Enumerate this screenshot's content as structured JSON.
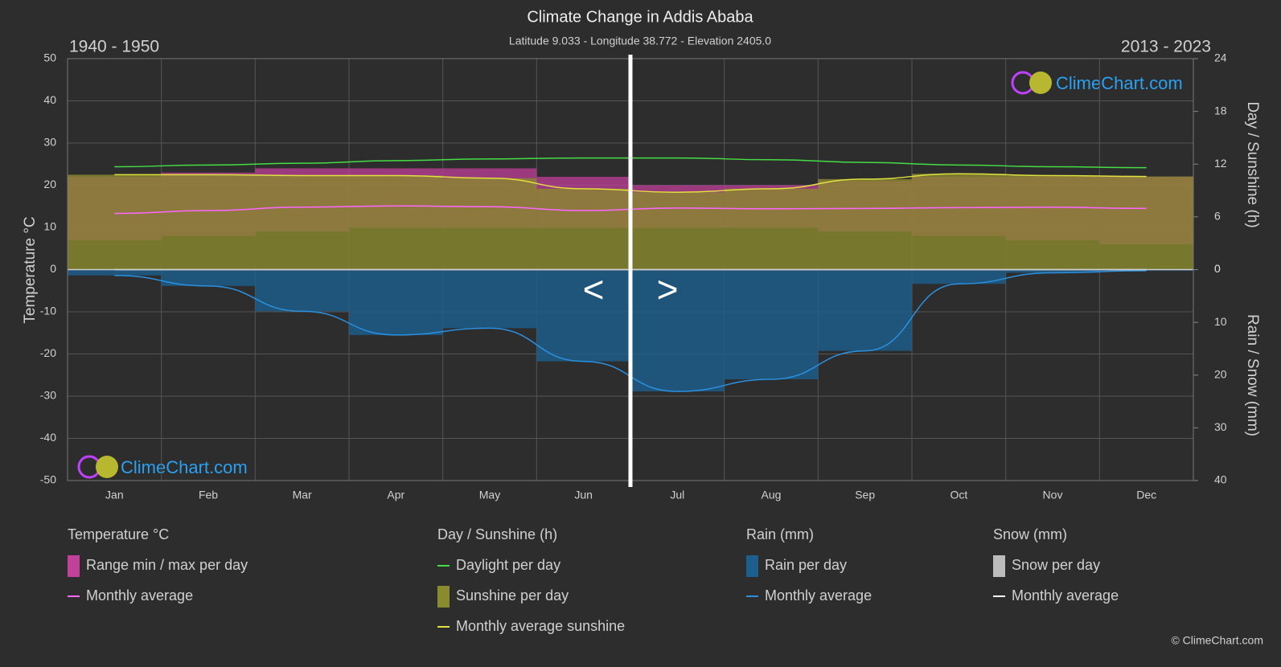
{
  "chart_data": {
    "type": "climate",
    "title": "Climate Change in Addis Ababa",
    "subtitle": "Latitude 9.033 - Longitude 38.772 - Elevation 2405.0",
    "period_left": "1940 - 1950",
    "period_right": "2013 - 2023",
    "nav": [
      "<",
      ">"
    ],
    "watermark": "ClimeChart.com",
    "copyright": "© ClimeChart.com",
    "y_label": "Temperature °C",
    "y2_label": "Day / Sunshine (h)",
    "y3_label": "Rain / Snow (mm)",
    "categories": [
      "Jan",
      "Feb",
      "Mar",
      "Apr",
      "May",
      "Jun",
      "Jul",
      "Aug",
      "Sep",
      "Oct",
      "Nov",
      "Dec"
    ],
    "ylim": [
      -50,
      50
    ],
    "yticks": [
      -50,
      -40,
      -30,
      -20,
      -10,
      0,
      10,
      20,
      30,
      40,
      50
    ],
    "y2lim": [
      0,
      24
    ],
    "y2ticks": [
      0,
      6,
      12,
      18,
      24
    ],
    "y3lim": [
      0,
      40
    ],
    "y3ticks": [
      0,
      10,
      20,
      30,
      40
    ],
    "grid": true,
    "groups": [
      {
        "title": "Temperature °C",
        "series": [
          {
            "name": "Range min / max per day",
            "kind": "range",
            "axis": "y",
            "color": "#c0409a",
            "low": [
              7,
              8,
              9,
              10,
              10,
              10,
              10,
              10,
              9,
              8,
              7,
              6
            ],
            "values": [
              22,
              23,
              24,
              24,
              24,
              22,
              20,
              20,
              21,
              22,
              22,
              22
            ]
          },
          {
            "name": "Monthly average",
            "kind": "line",
            "axis": "y",
            "color": "#ff66ff",
            "values": [
              13.3,
              14.0,
              14.8,
              15.1,
              14.9,
              14.0,
              14.6,
              14.4,
              14.5,
              14.7,
              14.8,
              14.5
            ]
          }
        ]
      },
      {
        "title": "Day / Sunshine (h)",
        "series": [
          {
            "name": "Daylight per day",
            "kind": "line",
            "axis": "y2",
            "color": "#44dd44",
            "values": [
              11.7,
              11.9,
              12.1,
              12.4,
              12.6,
              12.7,
              12.7,
              12.5,
              12.2,
              11.9,
              11.7,
              11.6
            ]
          },
          {
            "name": "Sunshine per day",
            "kind": "area",
            "axis": "y2",
            "color": "#8a8a2e",
            "values": [
              10.8,
              10.8,
              10.7,
              10.7,
              10.4,
              9.2,
              8.8,
              9.2,
              10.3,
              10.9,
              10.7,
              10.6
            ]
          },
          {
            "name": "Monthly average sunshine",
            "kind": "line",
            "axis": "y2",
            "color": "#e0e040",
            "values": [
              10.8,
              10.8,
              10.7,
              10.7,
              10.4,
              9.2,
              8.8,
              9.2,
              10.3,
              10.9,
              10.7,
              10.6
            ]
          }
        ]
      },
      {
        "title": "Rain (mm)",
        "series": [
          {
            "name": "Rain per day",
            "kind": "area",
            "axis": "y3",
            "color": "#1c5f8f",
            "values": [
              1.1,
              3.1,
              7.9,
              12.4,
              11.1,
              17.4,
              23.1,
              20.8,
              15.4,
              2.7,
              0.6,
              0.2
            ]
          },
          {
            "name": "Monthly average",
            "kind": "line",
            "axis": "y3",
            "color": "#2a90e0",
            "values": [
              1.1,
              3.1,
              7.9,
              12.4,
              11.1,
              17.4,
              23.1,
              20.8,
              15.4,
              2.7,
              0.6,
              0.2
            ]
          }
        ]
      },
      {
        "title": "Snow (mm)",
        "series": [
          {
            "name": "Snow per day",
            "kind": "area",
            "axis": "y3",
            "color": "#bbbbbb",
            "values": [
              0,
              0,
              0,
              0,
              0,
              0,
              0,
              0,
              0,
              0,
              0,
              0
            ]
          },
          {
            "name": "Monthly average",
            "kind": "line",
            "axis": "y3",
            "color": "#ffffff",
            "values": [
              0,
              0,
              0,
              0,
              0,
              0,
              0,
              0,
              0,
              0,
              0,
              0
            ]
          }
        ]
      }
    ]
  }
}
